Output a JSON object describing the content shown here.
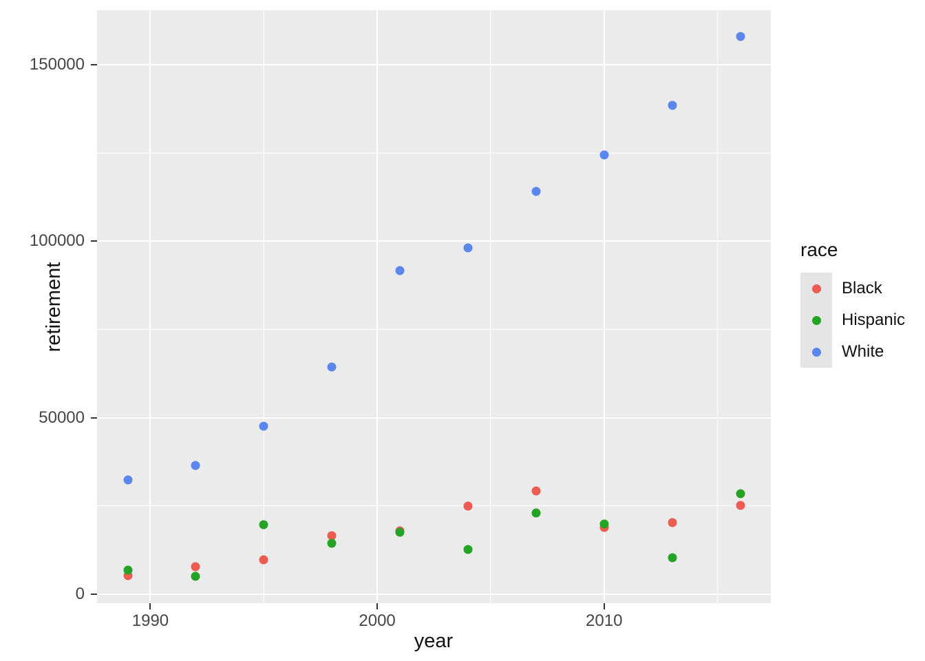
{
  "figure": {
    "background": "#FFFFFF",
    "panel_background": "#EBEBEB",
    "gridline_color": "#FFFFFF",
    "tick_mark_color": "#333333",
    "tick_label_color": "#454545",
    "axis_title_color": "#111111"
  },
  "chart_data": {
    "type": "scatter",
    "title": "",
    "xlabel": "year",
    "ylabel": "retirement",
    "x": [
      1989,
      1992,
      1995,
      1998,
      2001,
      2004,
      2007,
      2010,
      2013,
      2016
    ],
    "series": [
      {
        "name": "Black",
        "color": "#ED5B51",
        "values": [
          5300,
          7800,
          9800,
          16600,
          17900,
          25000,
          29300,
          18900,
          20300,
          25200
        ]
      },
      {
        "name": "Hispanic",
        "color": "#24A324",
        "values": [
          6800,
          5100,
          19700,
          14400,
          17600,
          12700,
          23000,
          19900,
          10300,
          28500
        ]
      },
      {
        "name": "White",
        "color": "#5A87EE",
        "values": [
          32400,
          36500,
          47600,
          64400,
          91700,
          98100,
          114100,
          124400,
          138500,
          158000
        ]
      }
    ],
    "xlim": [
      1987.65,
      2017.35
    ],
    "ylim": [
      -2500,
      165400
    ],
    "x_major_ticks": [
      1990,
      2000,
      2010
    ],
    "x_tick_labels": [
      "1990",
      "2000",
      "2010"
    ],
    "x_minor_ticks": [
      1995,
      2005,
      2015
    ],
    "y_major_ticks": [
      0,
      50000,
      100000,
      150000
    ],
    "y_tick_labels": [
      "0",
      "50000",
      "100000",
      "150000"
    ],
    "y_minor_ticks": [
      25000,
      75000,
      125000
    ],
    "grid": true,
    "legend_position": "right"
  },
  "legend": {
    "title": "race",
    "key_fill": "#E5E5E5",
    "items": [
      {
        "label": "Black",
        "color": "#ED5B51"
      },
      {
        "label": "Hispanic",
        "color": "#24A324"
      },
      {
        "label": "White",
        "color": "#5A87EE"
      }
    ]
  }
}
